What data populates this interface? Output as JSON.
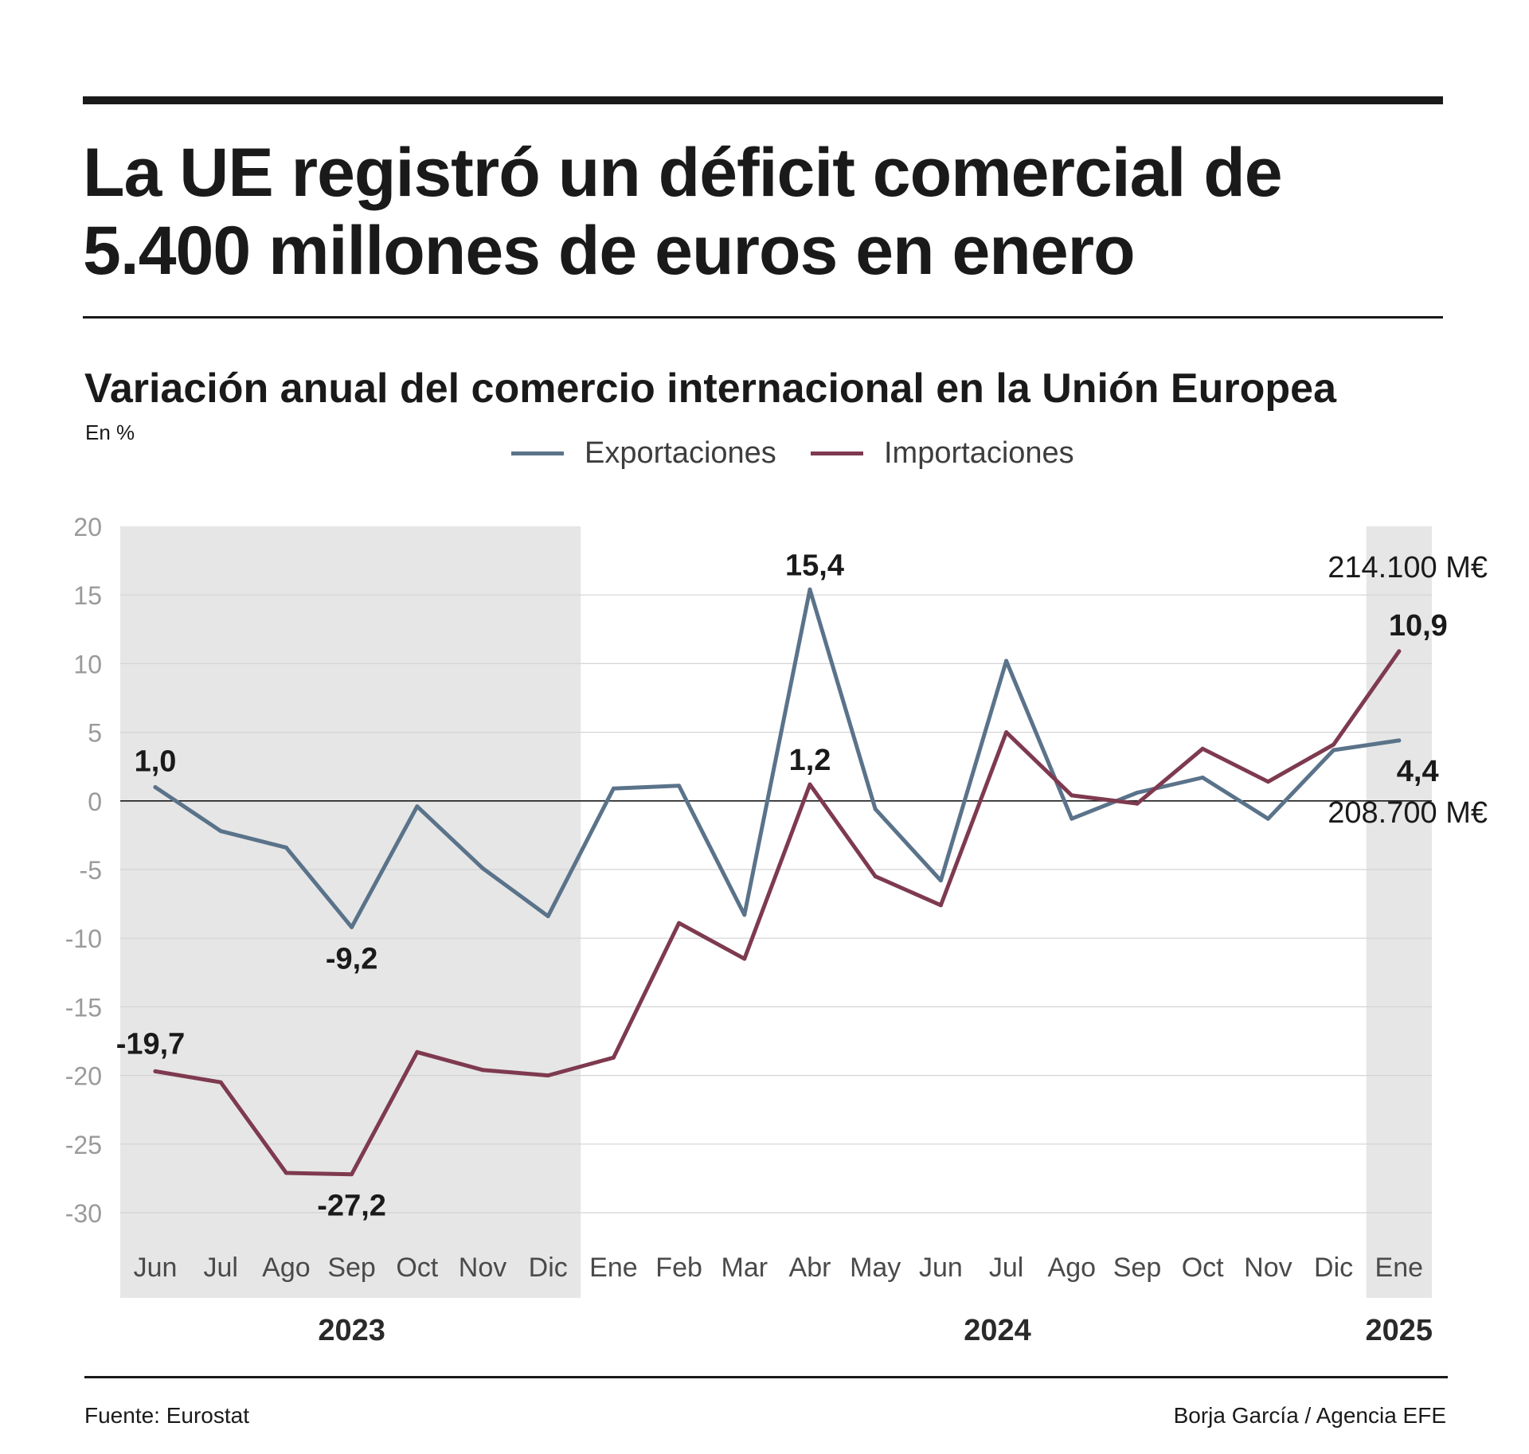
{
  "header": {
    "title": "La UE registró un déficit comercial de 5.400 millones de euros en enero"
  },
  "chart_data": {
    "type": "line",
    "title": "Variación anual del comercio internacional en la Unión Europea",
    "unit_label": "En %",
    "ylim": [
      -30,
      20
    ],
    "y_ticks": [
      20,
      15,
      10,
      5,
      0,
      -5,
      -10,
      -15,
      -20,
      -25,
      -30
    ],
    "grid": true,
    "legend_position": "top-center",
    "categories": [
      "Jun",
      "Jul",
      "Ago",
      "Sep",
      "Oct",
      "Nov",
      "Dic",
      "Ene",
      "Feb",
      "Mar",
      "Abr",
      "May",
      "Jun",
      "Jul",
      "Ago",
      "Sep",
      "Oct",
      "Nov",
      "Dic",
      "Ene"
    ],
    "year_groups": [
      {
        "label": "2023",
        "start": 0,
        "end": 6,
        "shaded": true
      },
      {
        "label": "2024",
        "start": 7,
        "end": 18,
        "shaded": false
      },
      {
        "label": "2025",
        "start": 19,
        "end": 19,
        "shaded": true
      }
    ],
    "series": [
      {
        "name": "Exportaciones",
        "color": "#5a738a",
        "values": [
          1.0,
          -2.2,
          -3.4,
          -9.2,
          -0.4,
          -4.9,
          -8.4,
          0.9,
          1.1,
          -8.3,
          15.4,
          -0.6,
          -5.8,
          10.2,
          -1.3,
          0.6,
          1.7,
          -1.3,
          3.7,
          4.4
        ]
      },
      {
        "name": "Importaciones",
        "color": "#7e3a4f",
        "values": [
          -19.7,
          -20.5,
          -27.1,
          -27.2,
          -18.3,
          -19.6,
          -20.0,
          -18.7,
          -8.9,
          -11.5,
          1.2,
          -5.5,
          -7.6,
          5.0,
          0.4,
          -0.2,
          3.8,
          1.4,
          4.1,
          10.9
        ]
      }
    ],
    "data_labels": [
      {
        "series": 0,
        "index": 0,
        "text": "1,0"
      },
      {
        "series": 0,
        "index": 3,
        "text": "-9,2"
      },
      {
        "series": 0,
        "index": 10,
        "text": "15,4"
      },
      {
        "series": 0,
        "index": 19,
        "text": "4,4"
      },
      {
        "series": 1,
        "index": 0,
        "text": "-19,7"
      },
      {
        "series": 1,
        "index": 3,
        "text": "-27,2"
      },
      {
        "series": 1,
        "index": 10,
        "text": "1,2"
      },
      {
        "series": 1,
        "index": 19,
        "text": "10,9"
      }
    ],
    "annotations": [
      {
        "series": 1,
        "index": 19,
        "text": "214.100 M€"
      },
      {
        "series": 0,
        "index": 19,
        "text": "208.700 M€"
      }
    ]
  },
  "footer": {
    "source": "Fuente: Eurostat",
    "credit": "Borja García / Agencia EFE"
  }
}
